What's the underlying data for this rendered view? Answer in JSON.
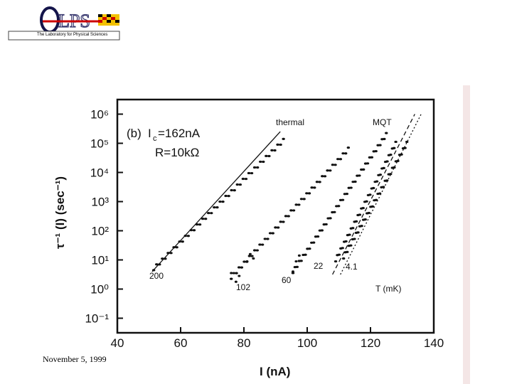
{
  "header": {
    "logo_text": "LPS",
    "logo_subtitle": "The Laboratory for Physical Sciences"
  },
  "footer": {
    "date": "November 5, 1999"
  },
  "chart_data": {
    "type": "scatter",
    "panel_label": "(b)",
    "xlabel": "I (nA)",
    "ylabel": "τ⁻¹ (I) (sec⁻¹)",
    "xlim": [
      40,
      140
    ],
    "ylim_log10": [
      -1.5,
      6.5
    ],
    "y_scale": "log",
    "x_ticks": [
      "40",
      "60",
      "80",
      "100",
      "120",
      "140"
    ],
    "y_ticks": [
      "10⁶",
      "10⁵",
      "10⁴",
      "10³",
      "10²",
      "10¹",
      "10⁰",
      "10⁻¹"
    ],
    "annotations": {
      "ic": "I",
      "ic_sub": "c",
      "ic_value": "=162nA",
      "resistance": "R=10kΩ",
      "thermal": "thermal",
      "mqt": "MQT",
      "t_unit": "T (mK)",
      "label_200": "200",
      "label_102": "102",
      "label_60": "60",
      "label_22": "22",
      "label_41": "4.1"
    },
    "series": [
      {
        "label": "200",
        "x_start": 51.5,
        "x_end": 92.5,
        "logy_start": 0.7,
        "logy_end": 5.1,
        "points": 46
      },
      {
        "label": "102",
        "x_start": 76.0,
        "x_end": 113.0,
        "logy_start": 0.4,
        "logy_end": 4.8,
        "points": 46
      },
      {
        "label": "60",
        "x_start": 95.5,
        "x_end": 125.0,
        "logy_start": 0.6,
        "logy_end": 5.3,
        "points": 46
      },
      {
        "label": "22",
        "x_start": 109.0,
        "x_end": 128.0,
        "logy_start": 1.0,
        "logy_end": 5.0,
        "points": 36
      },
      {
        "label": "4.1",
        "x_start": 111.5,
        "x_end": 131.5,
        "logy_start": 1.1,
        "logy_end": 5.0,
        "points": 36
      }
    ],
    "theory_lines": [
      {
        "name": "thermal",
        "x_start": 51.0,
        "x_end": 91.5,
        "logy_start": 0.6,
        "logy_end": 5.4,
        "style": "solid"
      },
      {
        "name": "MQT",
        "x_start": 108.0,
        "x_end": 134.0,
        "logy_start": 0.5,
        "logy_end": 6.0,
        "style": "dashed"
      },
      {
        "name": "MQT-alt",
        "x_start": 110.5,
        "x_end": 136.0,
        "logy_start": 0.5,
        "logy_end": 6.0,
        "style": "dotted"
      }
    ],
    "low_clusters": [
      {
        "x": [
          76,
          77.5,
          78.5,
          81,
          82,
          83
        ],
        "logy": [
          0.55,
          0.25,
          0.45,
          0.95,
          1.2,
          1.05
        ]
      },
      {
        "x": [
          95.5,
          96.5,
          97.5
        ],
        "logy": [
          0.6,
          0.95,
          1.15
        ]
      }
    ]
  }
}
